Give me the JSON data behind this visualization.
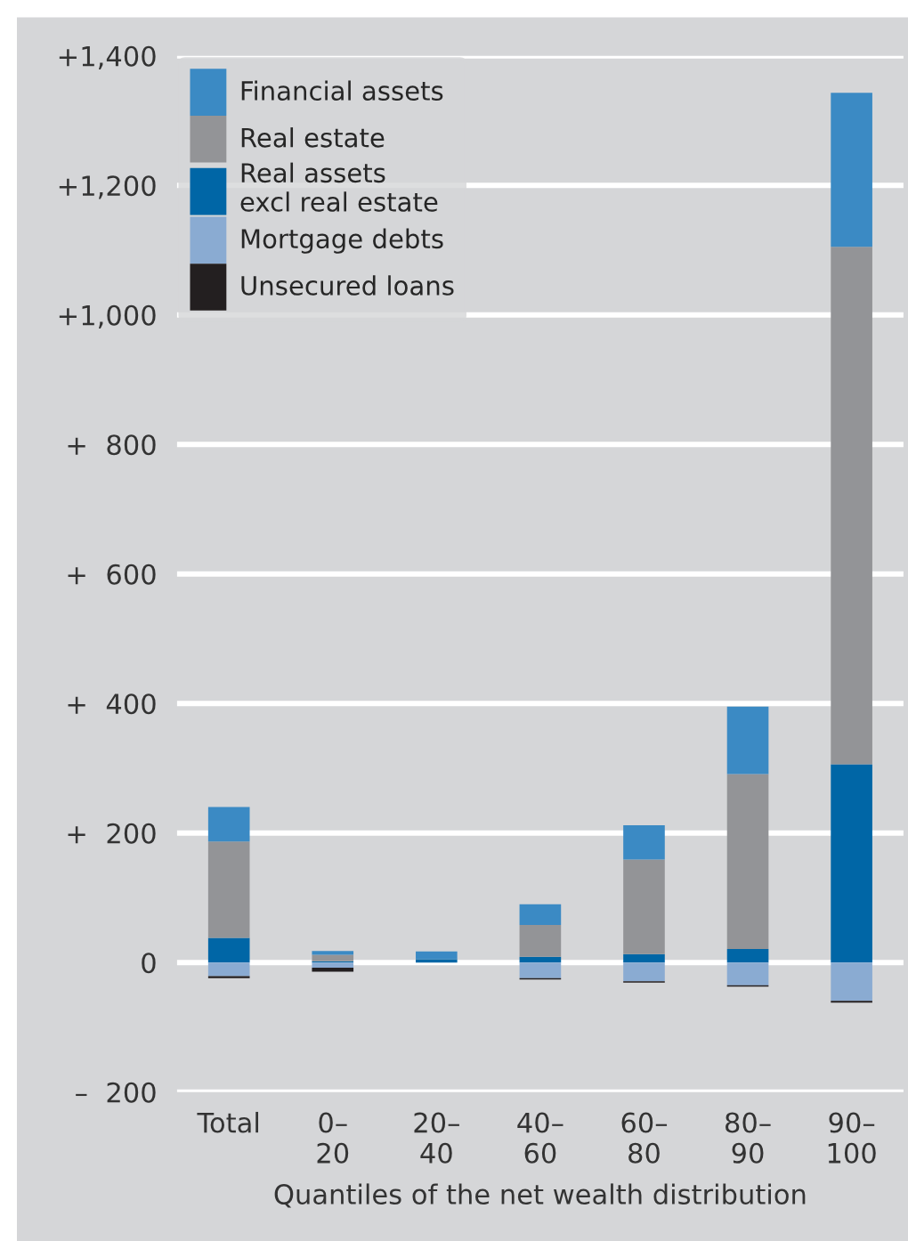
{
  "chart_data": {
    "type": "bar",
    "stacked": true,
    "xlabel": "Quantiles of the net wealth distribution",
    "categories": [
      "Total",
      "0–\n20",
      "20–\n40",
      "40–\n60",
      "60–\n80",
      "80–\n90",
      "90–\n100"
    ],
    "series": [
      {
        "name": "Real assets\nexcl real estate",
        "color": "#0066a6",
        "values": [
          38,
          2,
          5,
          9,
          13,
          21,
          306
        ]
      },
      {
        "name": "Real estate",
        "color": "#939497",
        "values": [
          149,
          10,
          null,
          49,
          146,
          270,
          799
        ]
      },
      {
        "name": "Financial assets",
        "color": "#3b8ac4",
        "values": [
          53,
          6,
          12,
          32,
          53,
          104,
          238
        ]
      },
      {
        "name": "Mortgage debts",
        "color": "#8aabd2",
        "values": [
          -21,
          -8,
          null,
          -24,
          -29,
          -35,
          -59
        ]
      },
      {
        "name": "Unsecured loans",
        "color": "#231f20",
        "values": [
          -3,
          -6,
          null,
          -2,
          -2,
          -2,
          -3
        ]
      }
    ],
    "ylim": [
      -200,
      1400
    ],
    "yticks": [
      {
        "value": -200,
        "label": "–  200"
      },
      0,
      {
        "value": 200,
        "label": "+  200"
      },
      {
        "value": 400,
        "label": "+  400"
      },
      {
        "value": 600,
        "label": "+  600"
      },
      {
        "value": 800,
        "label": "+  800"
      },
      {
        "value": 1000,
        "label": "+1,000"
      },
      {
        "value": 1200,
        "label": "+1,200"
      },
      {
        "value": 1400,
        "label": "+1,400"
      }
    ],
    "grid": "y",
    "legend": "top left"
  }
}
